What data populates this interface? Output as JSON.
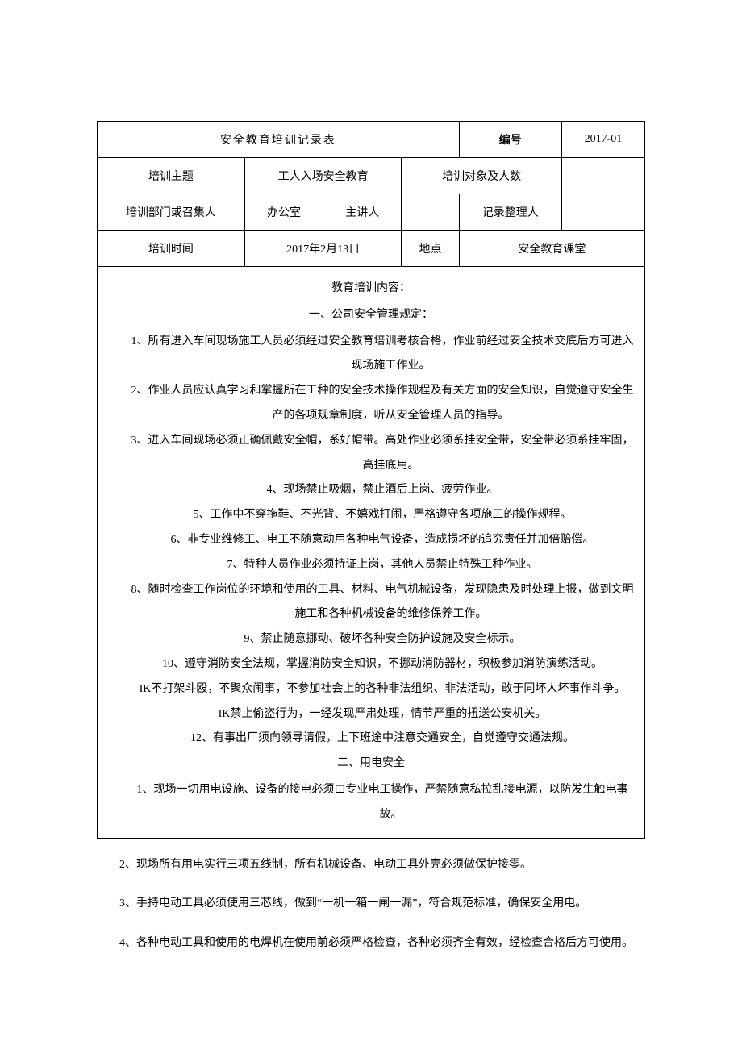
{
  "header": {
    "title": "安全教育培训记录表",
    "number_label": "编号",
    "number_value": "2017-01"
  },
  "row1": {
    "theme_label": "培训主题",
    "theme_value": "工人入场安全教育",
    "audience_label": "培训对象及人数",
    "audience_value": ""
  },
  "row2": {
    "dept_label": "培训部门或召集人",
    "dept_value": "办公室",
    "presenter_label": "主讲人",
    "presenter_value": "",
    "recorder_label": "记录整理人",
    "recorder_value": ""
  },
  "row3": {
    "time_label": "培训时间",
    "time_value": "2017年2月13日",
    "location_label": "地点",
    "location_value": "安全教育课堂"
  },
  "content": {
    "heading": "教育培训内容：",
    "section1_title": "一、公司安全管理规定：",
    "section1_items": [
      "1、所有进入车间现场施工人员必须经过安全教育培训考核合格，作业前经过安全技术交底后方可进入现场施工作业。",
      "2、作业人员应认真学习和掌握所在工种的安全技术操作规程及有关方面的安全知识，自觉遵守安全生产的各项规章制度，听从安全管理人员的指导。",
      "3、进入车间现场必须正确佩戴安全帽，系好帽带。高处作业必须系挂安全带，安全带必须系挂牢固，高挂底用。",
      "4、现场禁止吸烟，禁止酒后上岗、疲劳作业。",
      "5、工作中不穿拖鞋、不光背、不嬉戏打闹，严格遵守各项施工的操作规程。",
      "6、非专业维修工、电工不随意动用各种电气设备，造成损坏的追究责任并加倍赔偿。",
      "7、特种人员作业必须持证上岗，其他人员禁止特殊工种作业。",
      "8、随时检查工作岗位的环境和使用的工具、材料、电气机械设备，发现隐患及时处理上报，做到文明施工和各种机械设备的维修保养工作。",
      "9、禁止随意挪动、破坏各种安全防护设施及安全标示。",
      "10、遵守消防安全法规，掌握消防安全知识，不挪动消防器材，积极参加消防演练活动。",
      "IK不打架斗殴，不聚众闹事，不参加社会上的各种非法组织、非法活动，敢于同坏人坏事作斗争。",
      "IK禁止偷盗行为，一经发现严肃处理，情节严重的扭送公安机关。",
      "12、有事出厂须向领导请假，上下班途中注意交通安全，自觉遵守交通法规。"
    ],
    "section2_title": "二、用电安全",
    "section2_items_inside": [
      "1、现场一切用电设施、设备的接电必须由专业电工操作，严禁随意私拉乱接电源，以防发生触电事故。"
    ],
    "section2_items_outside": [
      "2、现场所有用电实行三项五线制，所有机械设备、电动工具外壳必须做保护接零。",
      "3、手持电动工具必须使用三芯线，做到“一机一箱一闸一漏”，符合规范标准，确保安全用电。",
      "4、各种电动工具和使用的电焊机在使用前必须严格检查，各种必须齐全有效，经检查合格后方可使用。"
    ]
  },
  "style": {
    "border_color": "#000000",
    "background_color": "#ffffff",
    "title_fontsize": 22,
    "body_fontsize": 14
  }
}
